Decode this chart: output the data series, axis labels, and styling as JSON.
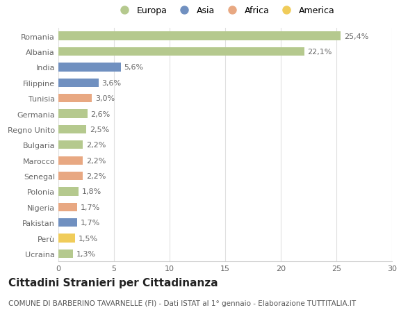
{
  "categories": [
    "Romania",
    "Albania",
    "India",
    "Filippine",
    "Tunisia",
    "Germania",
    "Regno Unito",
    "Bulgaria",
    "Marocco",
    "Senegal",
    "Polonia",
    "Nigeria",
    "Pakistan",
    "Perù",
    "Ucraina"
  ],
  "values": [
    25.4,
    22.1,
    5.6,
    3.6,
    3.0,
    2.6,
    2.5,
    2.2,
    2.2,
    2.2,
    1.8,
    1.7,
    1.7,
    1.5,
    1.3
  ],
  "labels": [
    "25,4%",
    "22,1%",
    "5,6%",
    "3,6%",
    "3,0%",
    "2,6%",
    "2,5%",
    "2,2%",
    "2,2%",
    "2,2%",
    "1,8%",
    "1,7%",
    "1,7%",
    "1,5%",
    "1,3%"
  ],
  "continents": [
    "Europa",
    "Europa",
    "Asia",
    "Asia",
    "Africa",
    "Europa",
    "Europa",
    "Europa",
    "Africa",
    "Africa",
    "Europa",
    "Africa",
    "Asia",
    "America",
    "Europa"
  ],
  "colors": {
    "Europa": "#b5c98e",
    "Asia": "#7090c0",
    "Africa": "#e8a882",
    "America": "#f0cc5a"
  },
  "title": "Cittadini Stranieri per Cittadinanza",
  "subtitle": "COMUNE DI BARBERINO TAVARNELLE (FI) - Dati ISTAT al 1° gennaio - Elaborazione TUTTITALIA.IT",
  "xlim": [
    0,
    30
  ],
  "xticks": [
    0,
    5,
    10,
    15,
    20,
    25,
    30
  ],
  "background_color": "#ffffff",
  "label_fontsize": 8,
  "tick_fontsize": 8,
  "title_fontsize": 11,
  "subtitle_fontsize": 7.5,
  "legend_fontsize": 9
}
